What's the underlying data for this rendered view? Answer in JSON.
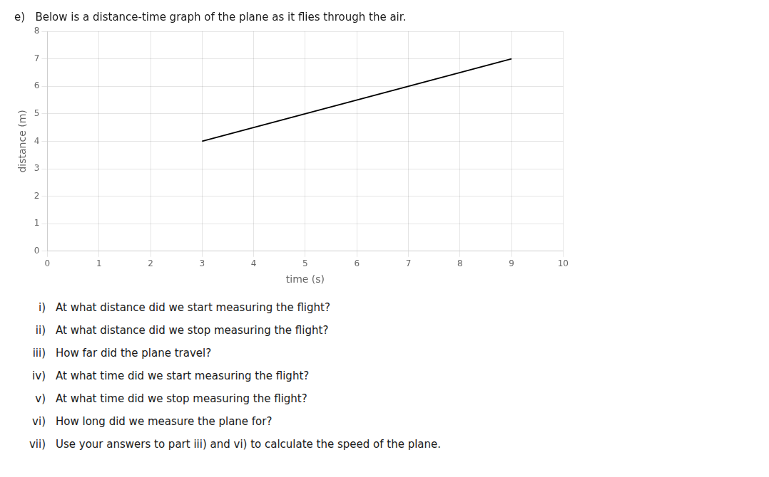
{
  "chart_data": {
    "type": "line",
    "title": "e)   Below is a distance-time graph of the plane as it flies through the air.",
    "x_label": "time (s)",
    "y_label": "distance (m)",
    "x": [
      3,
      9
    ],
    "values": [
      4,
      7
    ],
    "color": "#000000",
    "xlim": [
      0,
      10
    ],
    "ylim": [
      0,
      8
    ],
    "xticks": [
      0,
      1,
      2,
      3,
      4,
      5,
      6,
      7,
      8,
      9,
      10
    ],
    "yticks": [
      0,
      1,
      2,
      3,
      4,
      5,
      6,
      7,
      8
    ],
    "grid": true,
    "annotations": [
      {
        "label": "i)",
        "text": "At what distance did we start measuring the flight?"
      },
      {
        "label": "ii)",
        "text": "At what distance did we stop measuring the flight?"
      },
      {
        "label": "iii)",
        "text": "How far did the plane travel?"
      },
      {
        "label": "iv)",
        "text": "At what time did we start measuring the flight?"
      },
      {
        "label": "v)",
        "text": "At what time did we stop measuring the flight?"
      },
      {
        "label": "vi)",
        "text": "How long did we measure the plane for?"
      },
      {
        "label": "vii)",
        "text": "Use your answers to part iii) and vi) to calculate the speed of the plane."
      }
    ]
  }
}
